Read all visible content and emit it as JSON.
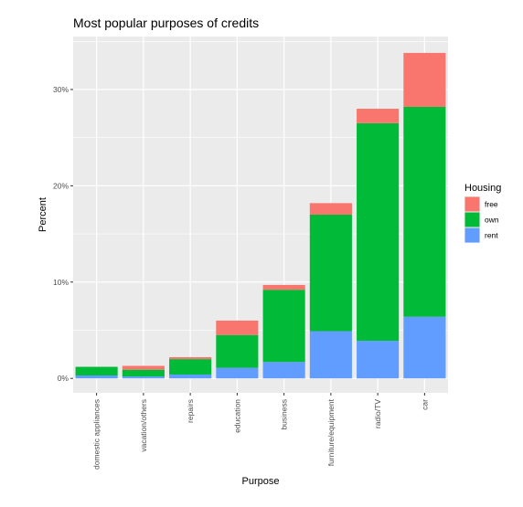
{
  "chart_data": {
    "type": "bar",
    "stacked": true,
    "title": "Most popular purposes of credits",
    "xlabel": "Purpose",
    "ylabel": "Percent",
    "ylim": [
      -1.5,
      35.5
    ],
    "y_ticks": [
      0,
      10,
      20,
      30
    ],
    "y_tick_labels": [
      "0%",
      "10%",
      "20%",
      "30%"
    ],
    "categories": [
      "domestic appliances",
      "vacation/others",
      "repairs",
      "education",
      "business",
      "furniture/equipment",
      "radio/TV",
      "car"
    ],
    "series": [
      {
        "name": "rent",
        "values": [
          0.3,
          0.2,
          0.4,
          1.1,
          1.7,
          4.9,
          3.9,
          6.4
        ]
      },
      {
        "name": "own",
        "values": [
          0.9,
          0.7,
          1.6,
          3.4,
          7.5,
          12.1,
          22.6,
          21.8
        ]
      },
      {
        "name": "free",
        "values": [
          0.0,
          0.4,
          0.2,
          1.5,
          0.5,
          1.2,
          1.5,
          5.6
        ]
      }
    ],
    "legend": {
      "title": "Housing",
      "position": "right",
      "entries": [
        "free",
        "own",
        "rent"
      ]
    },
    "grid": true
  },
  "colors": {
    "free": "#F8766D",
    "own": "#00BA38",
    "rent": "#619CFF",
    "panel": "#EBEBEB",
    "grid": "#FFFFFF"
  }
}
